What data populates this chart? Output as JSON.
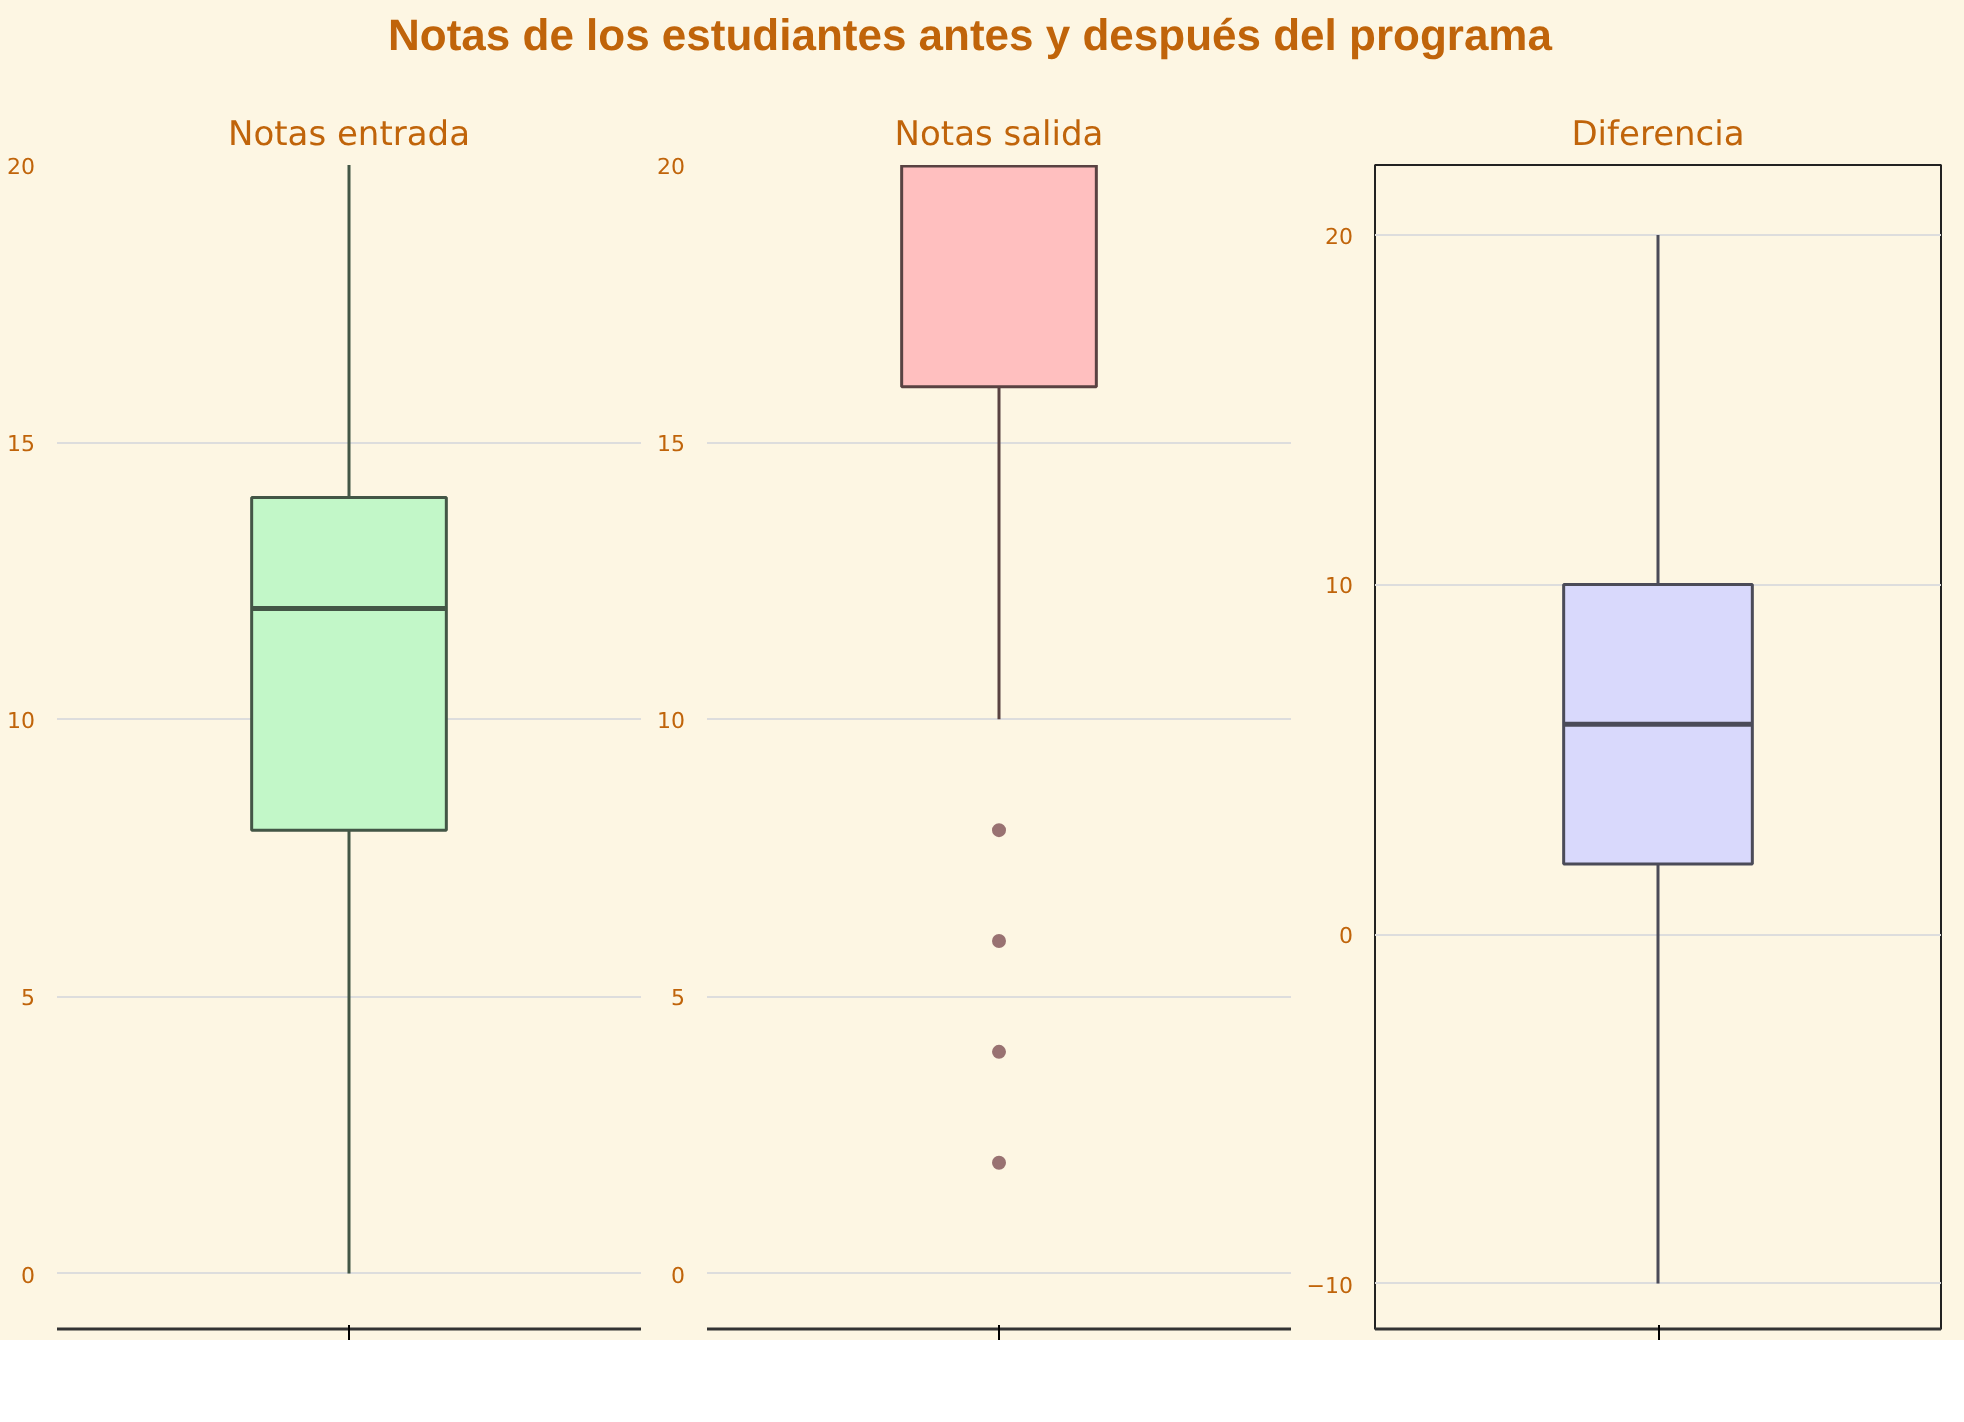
{
  "chart_data": [
    {
      "type": "box",
      "title": "Notas entrada",
      "annotations": [
        "Notas de los estudiantes antes y después del programa"
      ],
      "categories": [
        null
      ],
      "color": "#c2f7c8",
      "boxes": [
        {
          "low": 0,
          "q1": 8,
          "median": 12,
          "q3": 14,
          "high": 20
        }
      ],
      "ylim": [
        -1,
        20
      ],
      "yticks": [
        0,
        5,
        10,
        15,
        20
      ],
      "grid": "y",
      "tick_labels": "y"
    },
    {
      "type": "box",
      "title": "Notas salida",
      "categories": [
        null
      ],
      "color": "#ffbfbf",
      "boxes": [
        {
          "low": 10,
          "q1": 16,
          "median": 20,
          "q3": 20,
          "high": 20,
          "outliers": [
            8,
            6,
            4,
            2
          ]
        }
      ],
      "ylim": [
        -1,
        20
      ],
      "yticks": [
        0,
        5,
        10,
        15,
        20
      ],
      "grid": "y",
      "tick_labels": "y"
    },
    {
      "type": "box",
      "title": "Diferencia",
      "categories": [
        null
      ],
      "color": "#d9d9fc",
      "boxes": [
        {
          "low": -10,
          "q1": 2,
          "median": 6,
          "q3": 10,
          "high": 20
        }
      ],
      "ylim": [
        -11.3,
        22
      ],
      "yticks": [
        -10,
        0,
        10,
        20
      ],
      "grid": "y",
      "tick_labels": "y"
    }
  ]
}
